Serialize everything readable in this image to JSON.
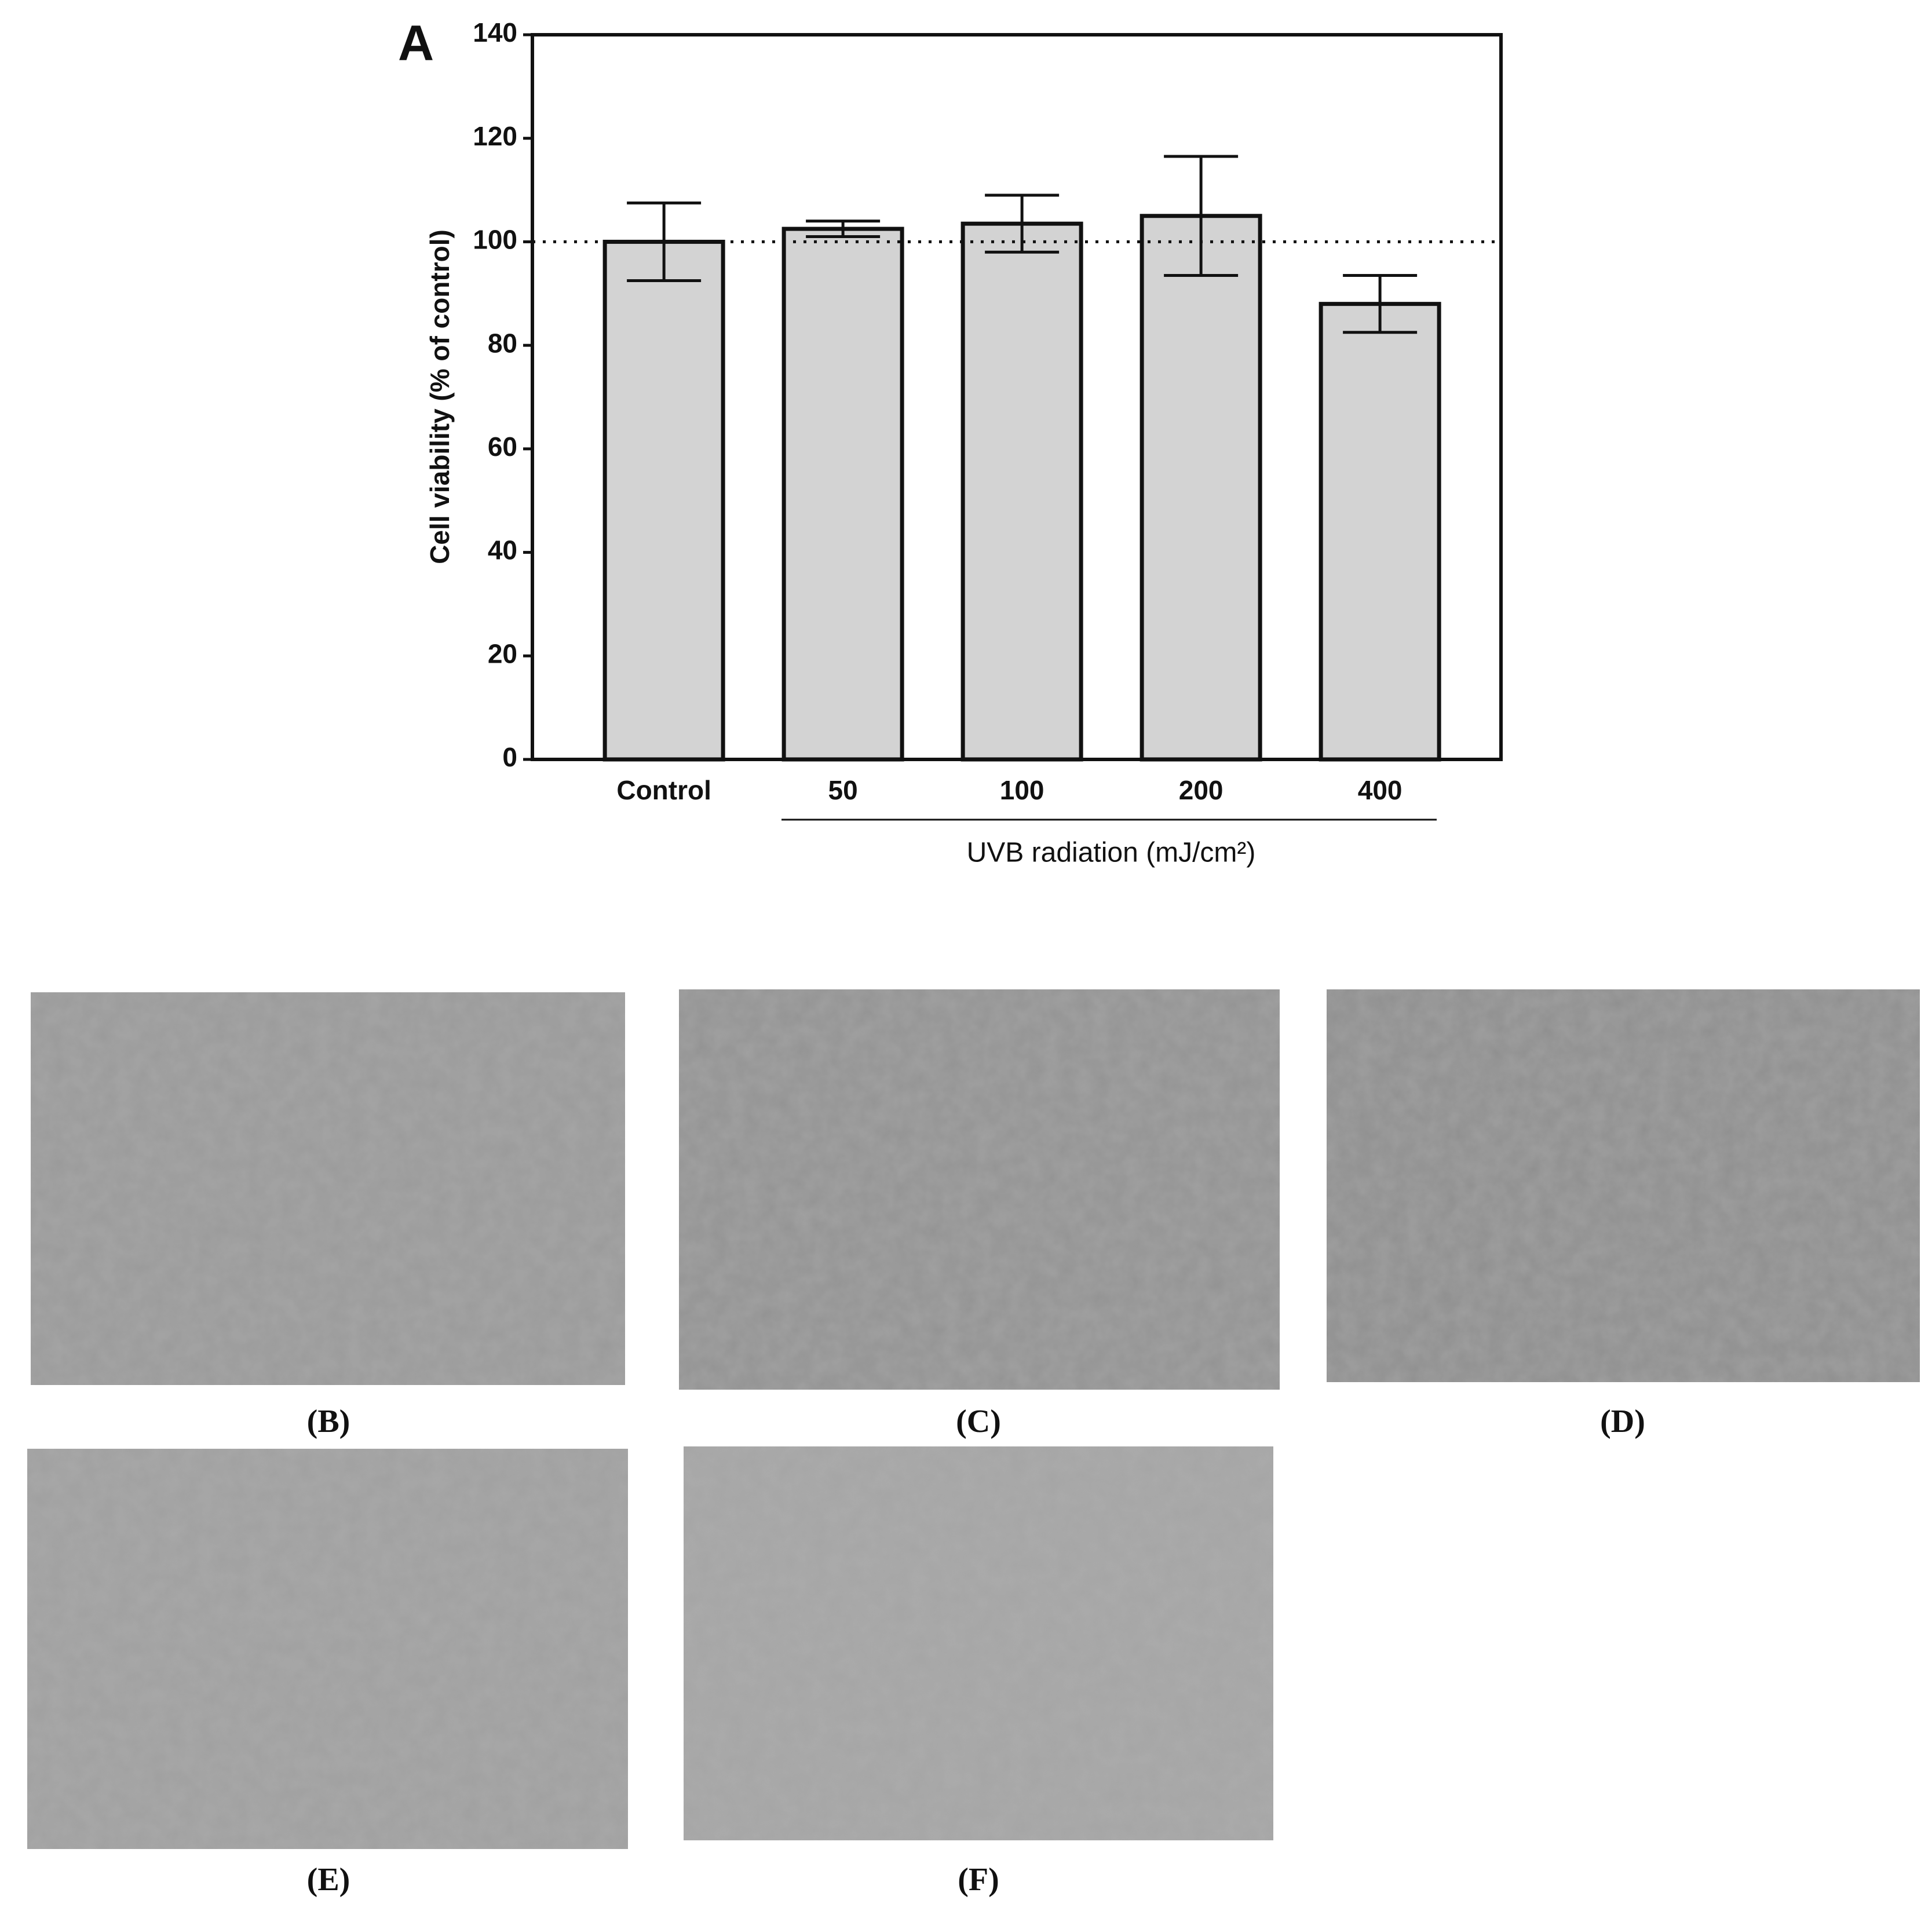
{
  "chart_data": {
    "type": "bar",
    "panel_label": "A",
    "y_label": "Cell viability (% of control)",
    "x_label": "UVB radiation (mJ/cm²)",
    "categories": [
      "Control",
      "50",
      "100",
      "200",
      "400"
    ],
    "values": [
      100,
      102.5,
      103.5,
      105,
      88
    ],
    "errors": [
      7.5,
      1.5,
      5.5,
      11.5,
      5.5
    ],
    "color": "#d3d3d3",
    "reference_line": 100,
    "ylim": [
      0,
      140
    ],
    "yticks": [
      0,
      20,
      40,
      60,
      80,
      100,
      120,
      140
    ]
  },
  "micrograph_captions": [
    "(B)",
    "(C)",
    "(D)",
    "(E)",
    "(F)"
  ]
}
